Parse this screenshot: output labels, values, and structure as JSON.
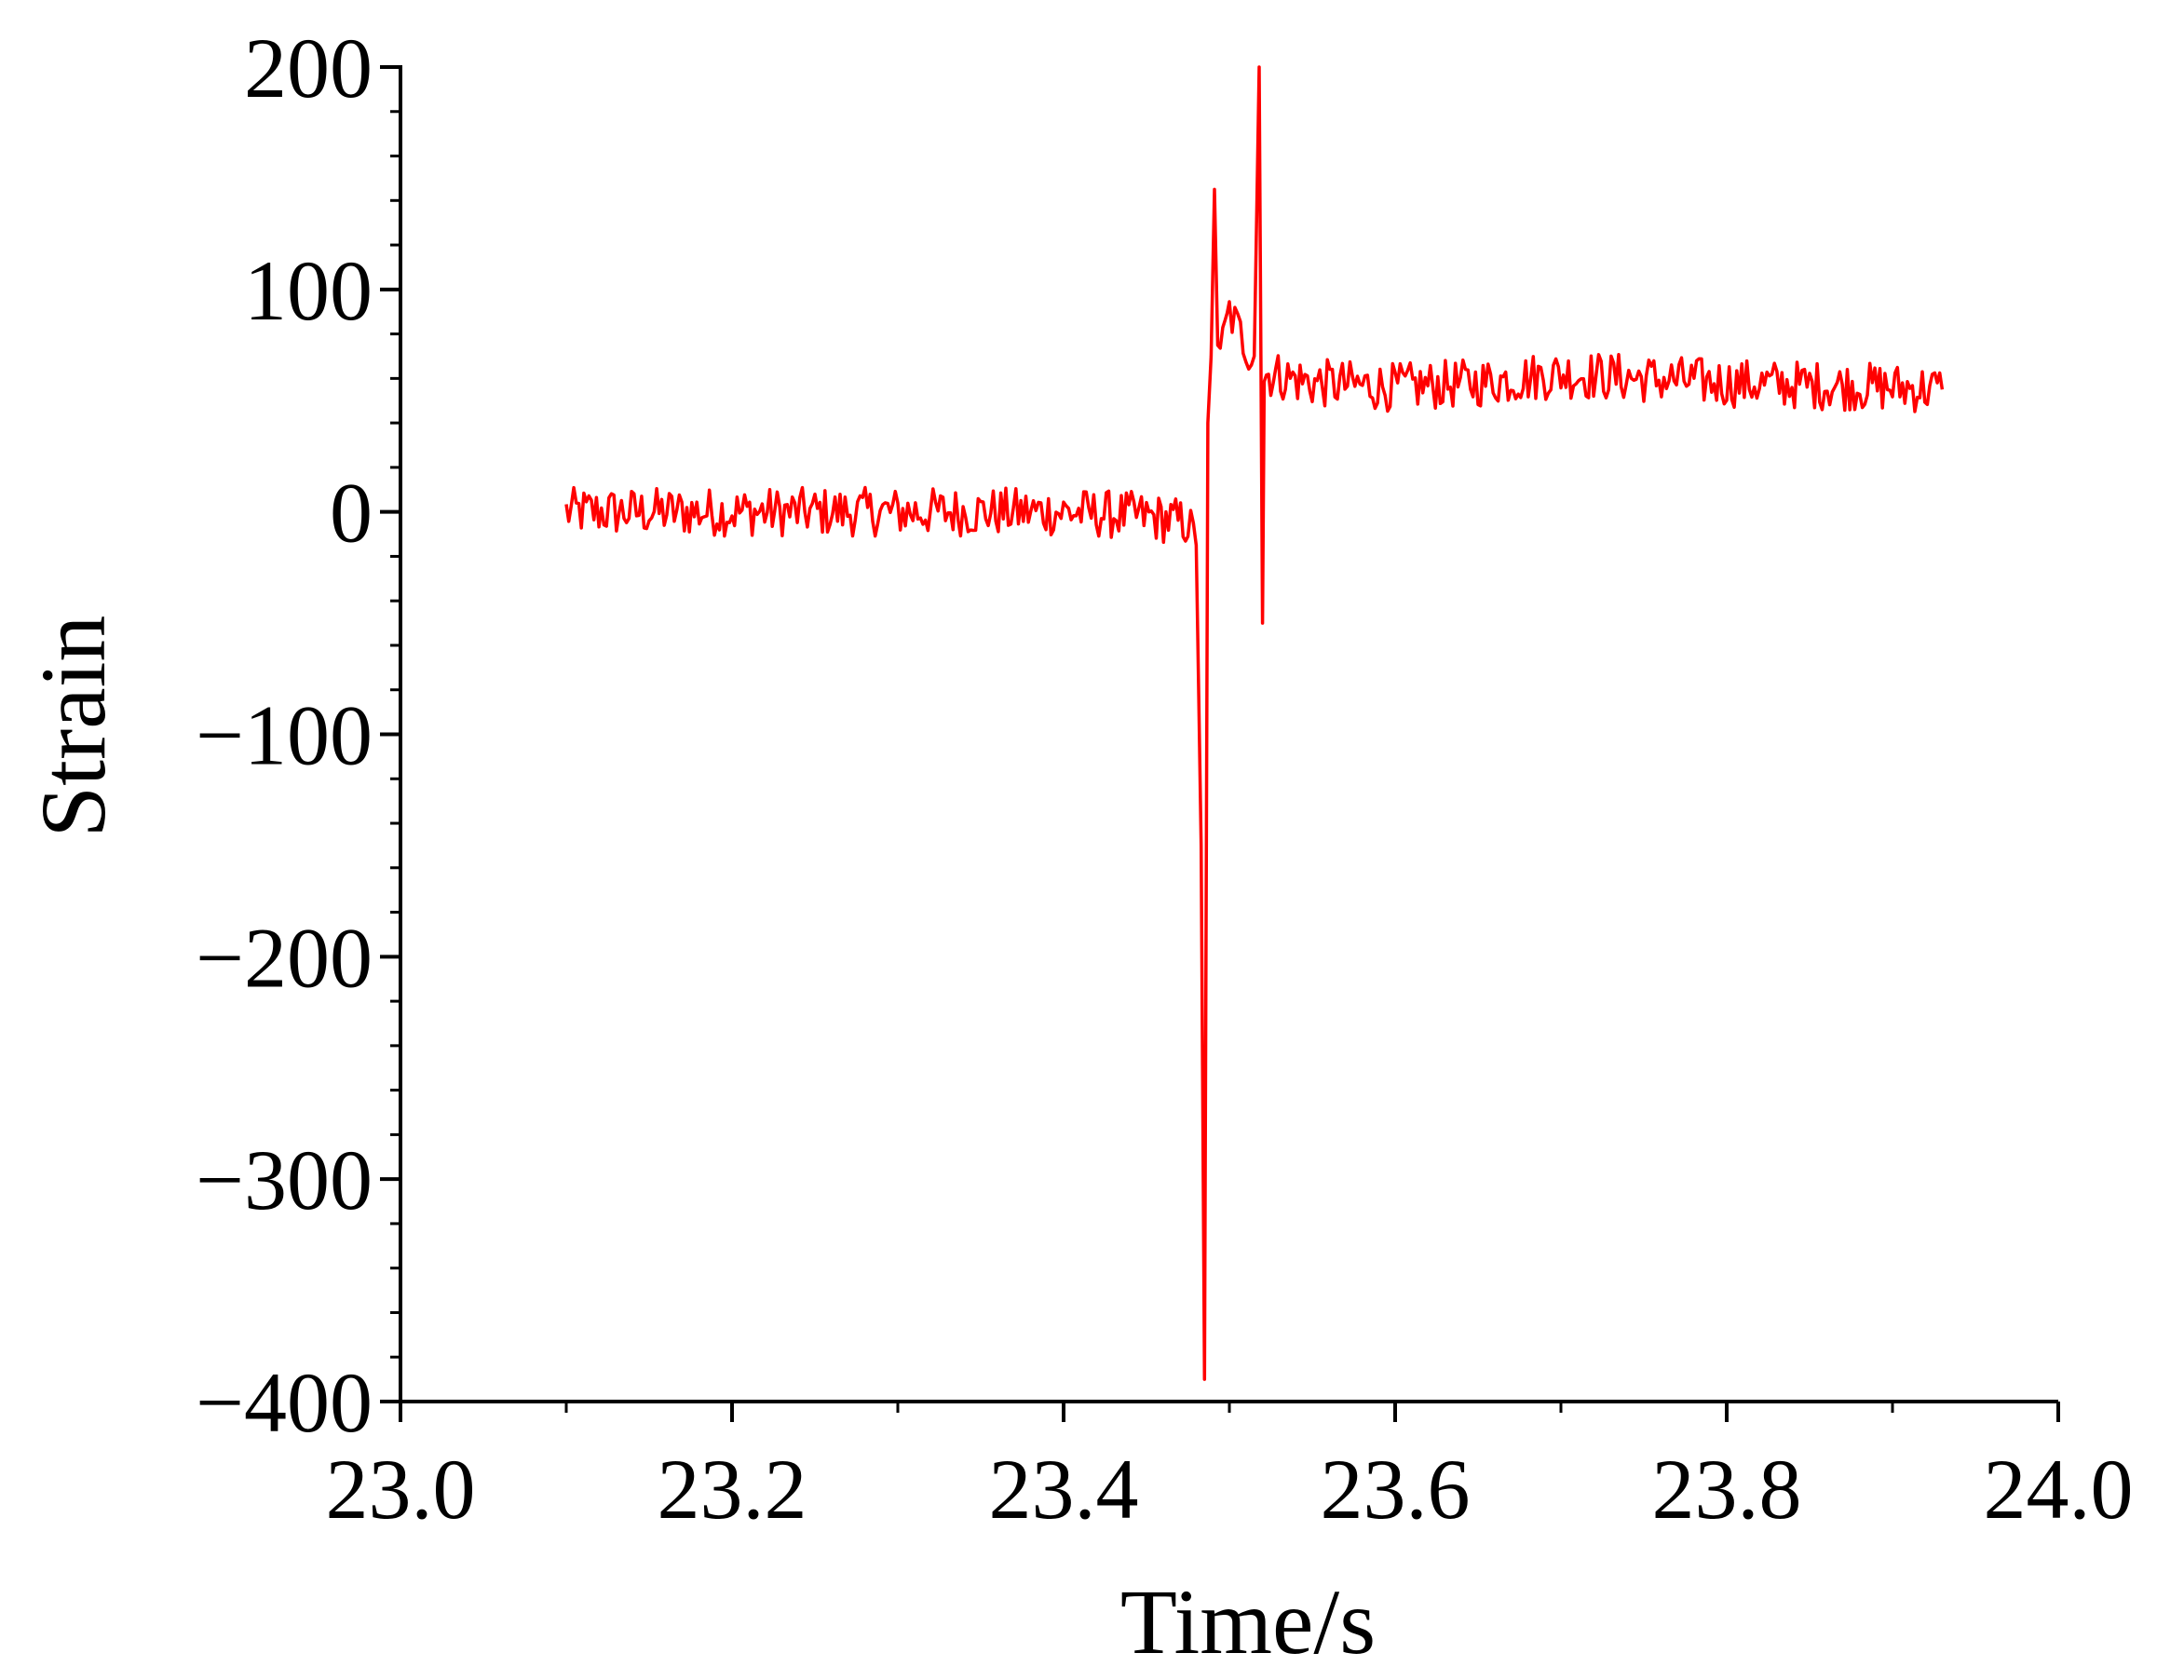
{
  "chart_data": {
    "type": "line",
    "title": "",
    "xlabel": "Time/s",
    "ylabel": "Strain",
    "xlim": [
      23.0,
      24.0
    ],
    "ylim": [
      -400,
      200
    ],
    "x_ticks": [
      "23.0",
      "23.2",
      "23.4",
      "23.6",
      "23.8",
      "24.0"
    ],
    "y_ticks": [
      "200",
      "100",
      "0",
      "−100",
      "−200",
      "−300",
      "−400"
    ],
    "grid": false,
    "legend": "none",
    "series": [
      {
        "color": "#ff0000",
        "x": [
          23.1,
          23.15,
          23.2,
          23.25,
          23.3,
          23.35,
          23.4,
          23.45,
          23.475,
          23.48,
          23.483,
          23.485,
          23.487,
          23.489,
          23.491,
          23.493,
          23.496,
          23.5,
          23.505,
          23.51,
          23.515,
          23.518,
          23.52,
          23.521,
          23.525,
          23.55,
          23.6,
          23.65,
          23.7,
          23.75,
          23.8,
          23.85,
          23.9,
          23.93
        ],
        "y": [
          0,
          0,
          0,
          0,
          0,
          0,
          0,
          -2,
          -5,
          -15,
          -150,
          -390,
          40,
          70,
          145,
          80,
          75,
          90,
          82,
          75,
          70,
          200,
          -50,
          62,
          62,
          58,
          56,
          58,
          62,
          60,
          58,
          57,
          56,
          55
        ]
      }
    ]
  }
}
